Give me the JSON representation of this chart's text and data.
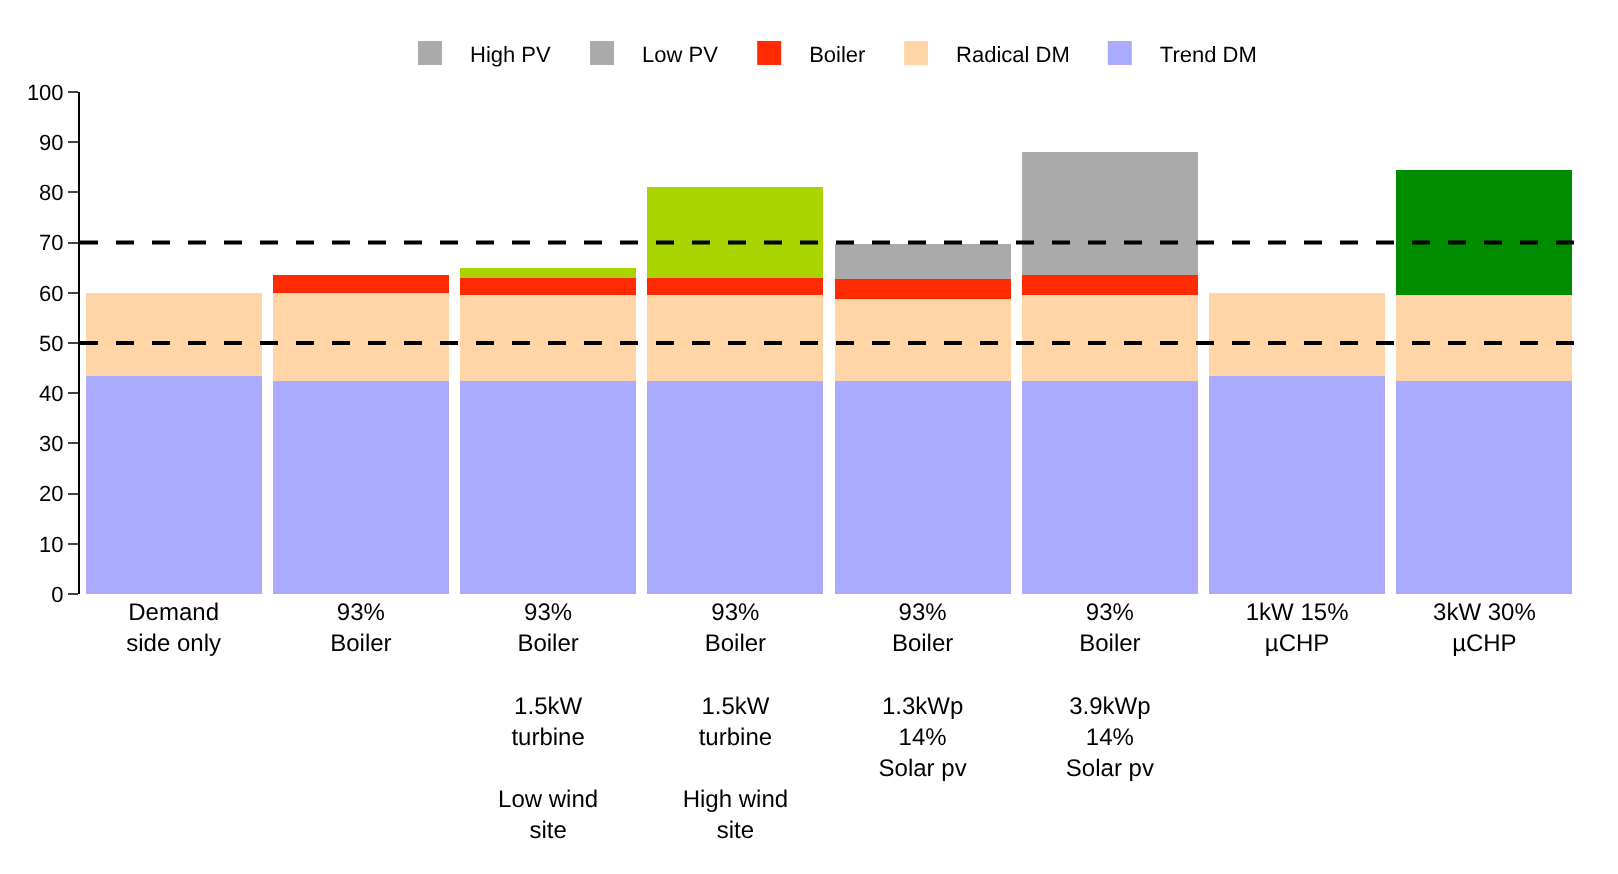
{
  "chart_data": {
    "type": "bar",
    "stacked": true,
    "categories": [
      "Demand\nside only",
      "93%\nBoiler",
      "93%\nBoiler\n\n1.5kW\nturbine\n\nLow wind\nsite",
      "93%\nBoiler\n\n1.5kW\nturbine\n\nHigh wind\nsite",
      "93%\nBoiler\n\n1.3kWp\n14%\nSolar pv",
      "93%\nBoiler\n\n3.9kWp\n14%\nSolar pv",
      "1kW 15%\nµCHP",
      "3kW 30%\nµCHP"
    ],
    "series": [
      {
        "name": "Trend DM",
        "color": "#aaaaff",
        "values": [
          43.5,
          42.5,
          42.5,
          42.5,
          42.5,
          42.5,
          43.5,
          42.5
        ]
      },
      {
        "name": "Radical DM",
        "color": "#ffd5a8",
        "values": [
          16.5,
          17.5,
          17,
          17,
          16.2,
          17,
          16.5,
          17
        ]
      },
      {
        "name": "Boiler",
        "color": "#ff2a00",
        "values": [
          null,
          3.5,
          3.5,
          3.5,
          4,
          4,
          null,
          null
        ]
      },
      {
        "color": "#aad400",
        "values": [
          null,
          null,
          2,
          18,
          null,
          null,
          null,
          null
        ]
      },
      {
        "name": "Low PV",
        "color": "#aaaaaa",
        "values": [
          null,
          null,
          null,
          null,
          7,
          null,
          null,
          null
        ]
      },
      {
        "name": "High PV",
        "color": "#aaaaaa",
        "values": [
          null,
          null,
          null,
          null,
          null,
          24.5,
          null,
          null
        ]
      },
      {
        "color": "#008c00",
        "values": [
          null,
          null,
          null,
          null,
          null,
          null,
          null,
          25
        ]
      }
    ],
    "ylim": [
      0,
      100
    ],
    "yticks": [
      0,
      10,
      20,
      30,
      40,
      50,
      60,
      70,
      80,
      90,
      100
    ],
    "grid": false,
    "legend": "top",
    "ref_lines": [
      {
        "axis": "y",
        "value": 50,
        "color": "#000000",
        "line_style": "dashed"
      },
      {
        "axis": "y",
        "value": 70,
        "color": "#000000",
        "line_style": "dashed"
      }
    ]
  }
}
